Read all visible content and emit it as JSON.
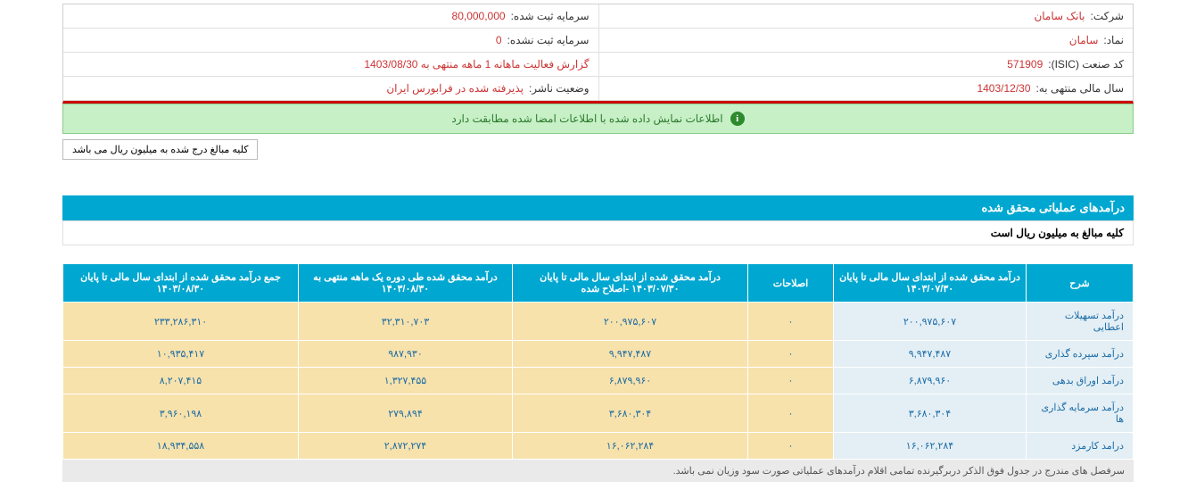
{
  "header": {
    "company_label": "شرکت:",
    "company_value": "بانک سامان",
    "capital_label": "سرمایه ثبت شده:",
    "capital_value": "80,000,000",
    "symbol_label": "نماد:",
    "symbol_value": "سامان",
    "unreg_capital_label": "سرمایه ثبت نشده:",
    "unreg_capital_value": "0",
    "isic_label": "کد صنعت (ISIC):",
    "isic_value": "571909",
    "report_label": "",
    "report_value": "گزارش فعالیت ماهانه 1 ماهه منتهی به 1403/08/30",
    "fy_label": "سال مالی منتهی به:",
    "fy_value": "1403/12/30",
    "pubstatus_label": "وضعیت ناشر:",
    "pubstatus_value": "پذیرفته شده در فرابورس ایران"
  },
  "status_text": "اطلاعات نمایش داده شده با اطلاعات امضا شده مطابقت دارد",
  "note_text": "کلیه مبالغ درج شده به میلیون ریال می باشد",
  "section_title": "درآمدهای عملیاتی محقق شده",
  "sub_note": "کلیه مبالغ به میلیون ریال است",
  "columns": [
    "شرح",
    "درآمد محقق شده از ابتدای سال مالی تا پایان ۱۴۰۳/۰۷/۳۰",
    "اصلاحات",
    "درآمد محقق شده از ابتدای سال مالی تا پایان ۱۴۰۳/۰۷/۳۰ -اصلاح شده",
    "درآمد محقق شده طی دوره یک ماهه منتهی به ۱۴۰۳/۰۸/۳۰",
    "جمع درآمد محقق شده از ابتدای سال مالی تا پایان ۱۴۰۳/۰۸/۳۰"
  ],
  "rows": [
    {
      "label": "درآمد تسهیلات اعطایی",
      "c1": "۲۰۰,۹۷۵,۶۰۷",
      "c2": "۰",
      "c3": "۲۰۰,۹۷۵,۶۰۷",
      "c4": "۳۲,۳۱۰,۷۰۳",
      "c5": "۲۳۳,۲۸۶,۳۱۰"
    },
    {
      "label": "درآمد سپرده گذاری",
      "c1": "۹,۹۴۷,۴۸۷",
      "c2": "۰",
      "c3": "۹,۹۴۷,۴۸۷",
      "c4": "۹۸۷,۹۳۰",
      "c5": "۱۰,۹۳۵,۴۱۷"
    },
    {
      "label": "درآمد اوراق بدهی",
      "c1": "۶,۸۷۹,۹۶۰",
      "c2": "۰",
      "c3": "۶,۸۷۹,۹۶۰",
      "c4": "۱,۳۲۷,۴۵۵",
      "c5": "۸,۲۰۷,۴۱۵"
    },
    {
      "label": "درآمد سرمایه گذاری ها",
      "c1": "۳,۶۸۰,۳۰۴",
      "c2": "۰",
      "c3": "۳,۶۸۰,۳۰۴",
      "c4": "۲۷۹,۸۹۴",
      "c5": "۳,۹۶۰,۱۹۸"
    },
    {
      "label": "درامد کارمزد",
      "c1": "۱۶,۰۶۲,۲۸۴",
      "c2": "۰",
      "c3": "۱۶,۰۶۲,۲۸۴",
      "c4": "۲,۸۷۲,۲۷۴",
      "c5": "۱۸,۹۳۴,۵۵۸"
    }
  ],
  "footer_note": "سرفصل های مندرج در جدول فوق الذکر دربرگیرنده تمامی اقلام درآمدهای عملیاتی صورت سود وزیان نمی باشد."
}
